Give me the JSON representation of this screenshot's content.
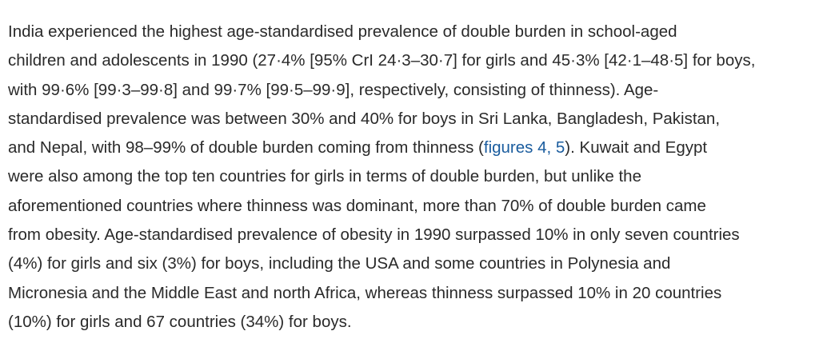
{
  "paragraph": {
    "lines": [
      "India experienced the highest age-standardised prevalence of double burden in school-aged",
      "children and adolescents in 1990 (27·4% [95% CrI 24·3–30·7] for girls and 45·3% [42·1–48·5] for boys,",
      "with 99·6% [99·3–99·8] and 99·7% [99·5–99·9], respectively, consisting of thinness). Age-",
      "standardised prevalence was between 30% and 40% for boys in Sri Lanka, Bangladesh, Pakistan,",
      "and Nepal, with 98–99% of double burden coming from thinness (",
      "). Kuwait and Egypt",
      "were also among the top ten countries for girls in terms of double burden, but unlike the",
      "aforementioned countries where thinness was dominant, more than 70% of double burden came",
      "from obesity. Age-standardised prevalence of obesity in 1990 surpassed 10% in only seven countries",
      "(4%) for girls and six (3%) for boys, including the USA and some countries in Polynesia and",
      "Micronesia and the Middle East and north Africa, whereas thinness surpassed 10% in 20 countries",
      "(10%) for girls and 67 countries (34%) for boys."
    ],
    "figure_link": "figures 4, 5",
    "link_color": "#1a5c9e",
    "text_color": "#2a2a2a"
  }
}
